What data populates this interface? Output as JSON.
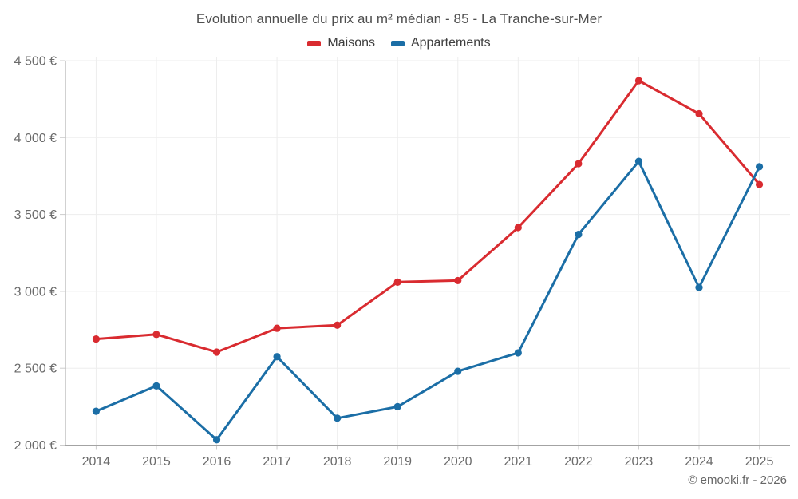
{
  "chart": {
    "footer": "© emooki.fr - 2026"
  },
  "chart_data": {
    "type": "line",
    "title": "Evolution annuelle du prix au m² médian - 85 - La Tranche-sur-Mer",
    "categories": [
      "2014",
      "2015",
      "2016",
      "2017",
      "2018",
      "2019",
      "2020",
      "2021",
      "2022",
      "2023",
      "2024",
      "2025"
    ],
    "series": [
      {
        "name": "Maisons",
        "color": "#d92b30",
        "values": [
          2690,
          2720,
          2605,
          2760,
          2780,
          3060,
          3070,
          3415,
          3830,
          4370,
          4155,
          3695
        ]
      },
      {
        "name": "Appartements",
        "color": "#1b6ea6",
        "values": [
          2220,
          2385,
          2035,
          2575,
          2175,
          2250,
          2480,
          2600,
          3370,
          3845,
          3025,
          3810
        ]
      }
    ],
    "ylabel": "",
    "xlabel": "",
    "ylim": [
      2000,
      4500
    ],
    "ytick_step": 500,
    "ytick_labels": [
      "2 000 €",
      "2 500 €",
      "3 000 €",
      "3 500 €",
      "4 000 €",
      "4 500 €"
    ],
    "grid": true,
    "legend_position": "top",
    "colors": {
      "grid": "#ededed",
      "axis": "#a3a3a3",
      "tick": "#cccccc",
      "tick_label": "#6b6b6b",
      "title_text": "#4e4e4e",
      "legend_text": "#3e3e3e"
    }
  }
}
